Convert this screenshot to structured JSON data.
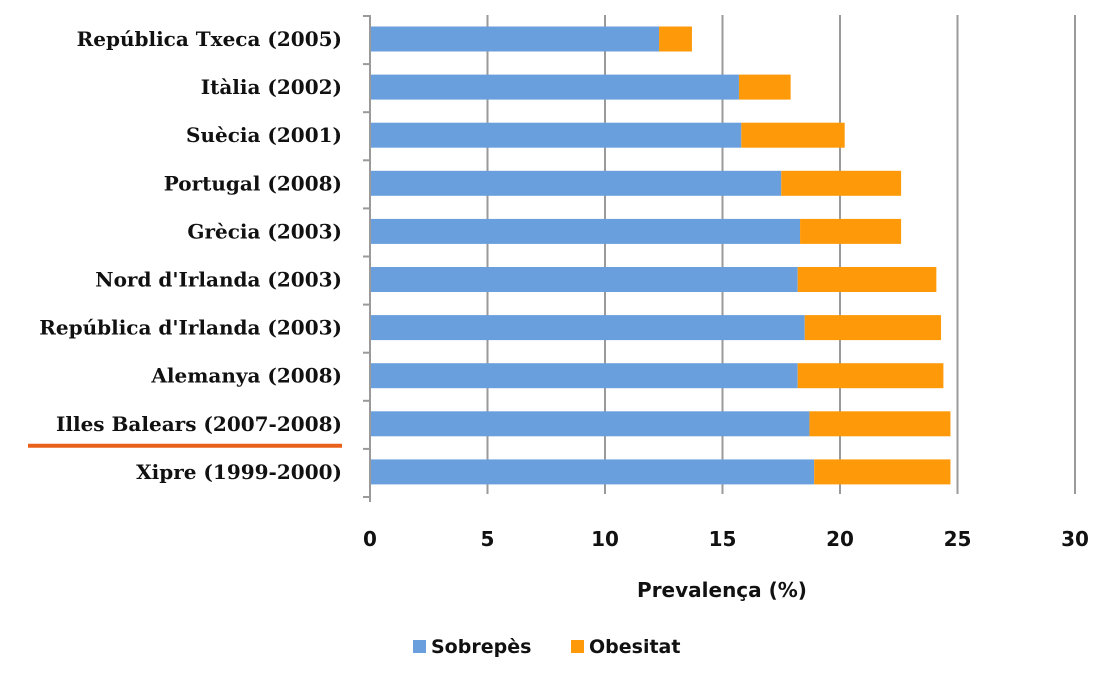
{
  "chart_data": {
    "type": "bar",
    "orientation": "horizontal",
    "stacked": true,
    "categories": [
      "República Txeca (2005)",
      "Itàlia (2002)",
      "Suècia (2001)",
      "Portugal (2008)",
      "Grècia (2003)",
      "Nord d'Irlanda (2003)",
      "República d'Irlanda (2003)",
      "Alemanya (2008)",
      "Illes Balears (2007-2008)",
      "Xipre (1999-2000)"
    ],
    "highlighted_category": "Illes Balears (2007-2008)",
    "series": [
      {
        "name": "Sobrepès",
        "color": "#6a9fdd",
        "values": [
          12.3,
          15.7,
          15.8,
          17.5,
          18.3,
          18.2,
          18.5,
          18.2,
          18.7,
          18.9
        ]
      },
      {
        "name": "Obesitat",
        "color": "#fe9a0a",
        "values": [
          1.4,
          2.2,
          4.4,
          5.1,
          4.3,
          5.9,
          5.8,
          6.2,
          6.0,
          5.8
        ]
      }
    ],
    "title": "",
    "xlabel": "Prevalença (%)",
    "ylabel": "",
    "xlim": [
      0,
      30
    ],
    "xticks": [
      "0",
      "5",
      "10",
      "15",
      "20",
      "25",
      "30"
    ],
    "grid": "vertical",
    "legend": "bottom",
    "highlight_color": "#e8601c"
  }
}
